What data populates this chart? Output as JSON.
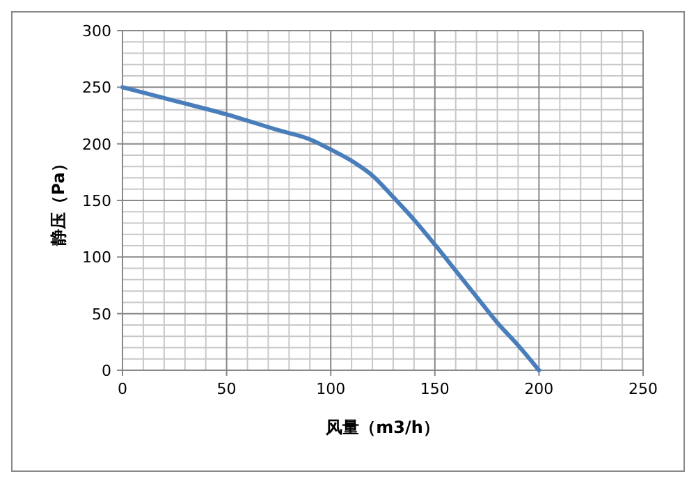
{
  "chart_data": {
    "type": "line",
    "xlabel": "风量（m3/h）",
    "ylabel": "静压（Pa）",
    "x": [
      0,
      25,
      50,
      75,
      90,
      100,
      110,
      120,
      130,
      140,
      150,
      160,
      170,
      180,
      190,
      200
    ],
    "series": [
      {
        "color": "#4a7ebb",
        "values": [
          250,
          238,
          226,
          212,
          204,
          195,
          185,
          172,
          153,
          133,
          111,
          88,
          65,
          42,
          22,
          0
        ]
      }
    ],
    "xlim": [
      0,
      250
    ],
    "xticks": [
      0,
      50,
      100,
      150,
      200,
      250
    ],
    "ylim": [
      0,
      300
    ],
    "yticks": [
      0,
      50,
      100,
      150,
      200,
      250,
      300
    ],
    "grid": true,
    "marker": "none",
    "line_style": "solid"
  }
}
